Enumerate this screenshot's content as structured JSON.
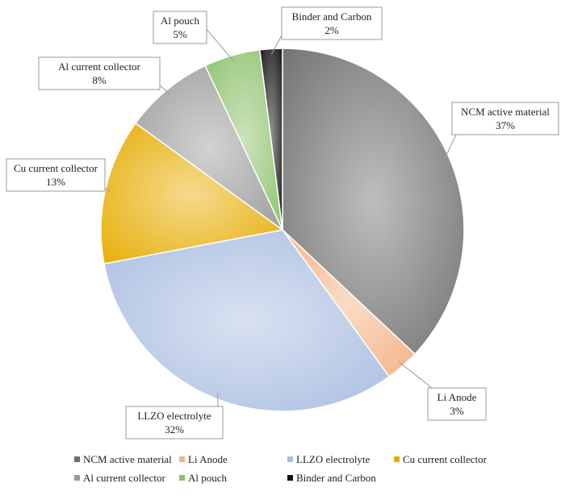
{
  "chart_data": {
    "type": "pie",
    "slices": [
      {
        "label": "NCM active material",
        "value": 37,
        "value_label": "37%",
        "color": "#6e6e6e"
      },
      {
        "label": "Li Anode",
        "value": 3,
        "value_label": "3%",
        "color": "#f4b183"
      },
      {
        "label": "LLZO electrolyte",
        "value": 32,
        "value_label": "32%",
        "color": "#a9bde0"
      },
      {
        "label": "Cu current collector",
        "value": 13,
        "value_label": "13%",
        "color": "#e6ac00"
      },
      {
        "label": "Al current collector",
        "value": 8,
        "value_label": "8%",
        "color": "#9a9a9a"
      },
      {
        "label": "Al pouch",
        "value": 5,
        "value_label": "5%",
        "color": "#8cc16a"
      },
      {
        "label": "Binder and Carbon",
        "value": 2,
        "value_label": "2%",
        "color": "#111111"
      }
    ],
    "legend": [
      "NCM active material",
      "Li Anode",
      "LLZO electrolyte",
      "Cu current collector",
      "Al current collector",
      "Al pouch",
      "Binder and Carbon"
    ],
    "legend_position": "bottom"
  }
}
